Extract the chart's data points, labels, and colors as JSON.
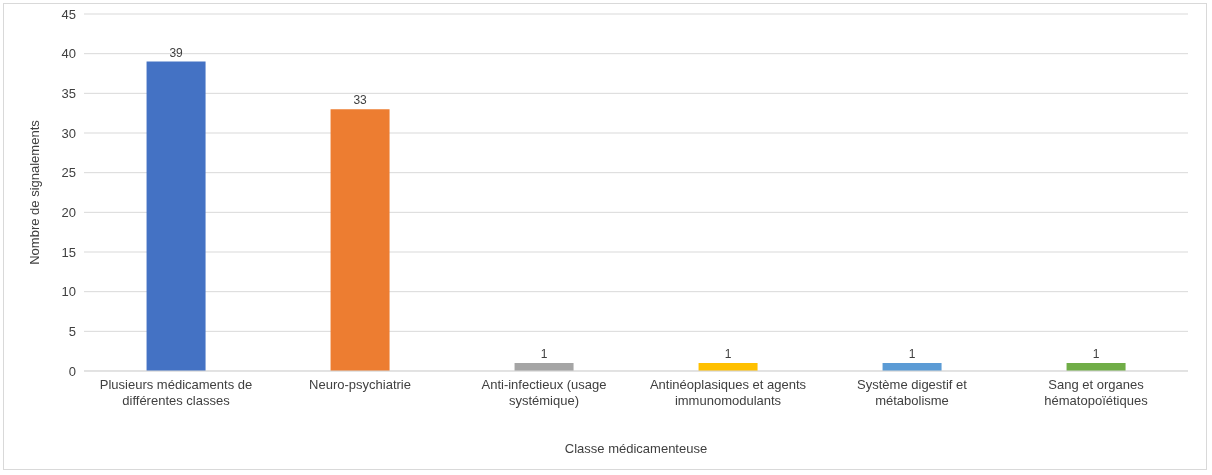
{
  "chart_data": {
    "type": "bar",
    "xlabel": "Classe médicamenteuse",
    "ylabel": "Nombre de signalements",
    "categories": [
      "Plusieurs médicaments de différentes classes",
      "Neuro-psychiatrie",
      "Anti-infectieux (usage systémique)",
      "Antinéoplasiques et agents immunomodulants",
      "Système digestif et métabolisme",
      "Sang et organes hématopoïétiques"
    ],
    "values": [
      39,
      33,
      1,
      1,
      1,
      1
    ],
    "colors": [
      "#4472c4",
      "#ed7d31",
      "#a5a5a5",
      "#ffc000",
      "#5b9bd5",
      "#70ad47"
    ],
    "ylim": [
      0,
      45
    ],
    "yticks": [
      0,
      5,
      10,
      15,
      20,
      25,
      30,
      35,
      40,
      45
    ],
    "grid": "y",
    "data_labels": true
  }
}
